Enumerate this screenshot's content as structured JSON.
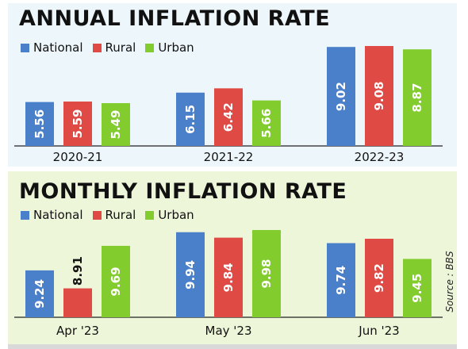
{
  "source_label": "Source : BBS",
  "colors": {
    "National": "#4a7fc9",
    "Rural": "#e04a45",
    "Urban": "#82cc2e"
  },
  "legend": [
    "National",
    "Rural",
    "Urban"
  ],
  "chart_data": [
    {
      "type": "bar",
      "title": "ANNUAL INFLATION RATE",
      "categories": [
        "2020-21",
        "2021-22",
        "2022-23"
      ],
      "series": [
        {
          "name": "National",
          "values": [
            5.56,
            6.15,
            9.02
          ]
        },
        {
          "name": "Rural",
          "values": [
            5.59,
            6.42,
            9.08
          ]
        },
        {
          "name": "Urban",
          "values": [
            5.49,
            5.66,
            8.87
          ]
        }
      ],
      "legend_position": "top-left",
      "grid": false,
      "data_labels": "inside-vertical"
    },
    {
      "type": "bar",
      "title": "MONTHLY INFLATION RATE",
      "categories": [
        "Apr '23",
        "May '23",
        "Jun '23"
      ],
      "series": [
        {
          "name": "National",
          "values": [
            9.24,
            9.94,
            9.74
          ]
        },
        {
          "name": "Rural",
          "values": [
            8.91,
            9.84,
            9.82
          ]
        },
        {
          "name": "Urban",
          "values": [
            9.69,
            9.98,
            9.45
          ]
        }
      ],
      "legend_position": "top-left",
      "grid": false,
      "data_labels": "inside-vertical"
    }
  ]
}
